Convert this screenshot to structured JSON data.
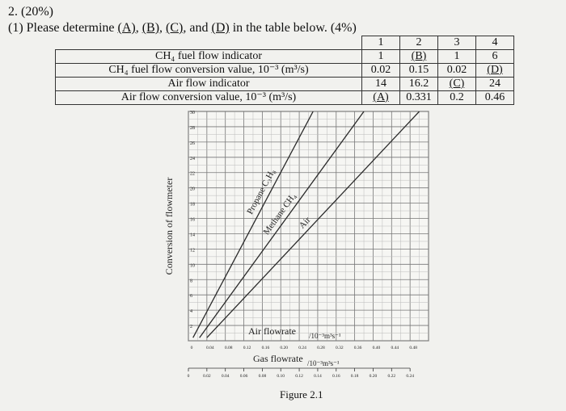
{
  "problem": {
    "heading": "2. (20%)",
    "question_parts": [
      "(1) Please determine ",
      "(A)",
      ", ",
      "(B)",
      ", ",
      "(C)",
      ", and ",
      "(D)",
      " in the table below. (4%)"
    ]
  },
  "table": {
    "columns": [
      "1",
      "2",
      "3",
      "4"
    ],
    "rows": [
      {
        "label": "CH₄ fuel flow indicator",
        "values": [
          "1",
          "(B)",
          "1",
          "6"
        ]
      },
      {
        "label": "CH₄ fuel flow conversion value, 10⁻³ (m³/s)",
        "values": [
          "0.02",
          "0.15",
          "0.02",
          "(D)"
        ]
      },
      {
        "label": "Air flow indicator",
        "values": [
          "14",
          "16.2",
          "(C)",
          "24"
        ]
      },
      {
        "label": "Air flow conversion value, 10⁻³ (m³/s)",
        "values": [
          "(A)",
          "0.331",
          "0.2",
          "0.46"
        ]
      }
    ]
  },
  "chart_data": {
    "type": "line",
    "ylabel": "Conversion of flowmeter",
    "y_ticks": [
      "2",
      "4",
      "6",
      "8",
      "10",
      "12",
      "14",
      "16",
      "18",
      "20",
      "22",
      "24",
      "26",
      "28",
      "30"
    ],
    "ylim": [
      0,
      30
    ],
    "x_axis_air": {
      "label": "Air flowrate",
      "unit": "/10⁻³m³s⁻¹",
      "ticks": [
        "0",
        "0.04",
        "0.08",
        "0.12",
        "0.16",
        "0.20",
        "0.24",
        "0.28",
        "0.32",
        "0.36",
        "0.40",
        "0.44",
        "0.48"
      ]
    },
    "x_axis_gas": {
      "label": "Gas flowrate",
      "unit": "/10⁻³m³s⁻¹",
      "ticks": [
        "0",
        "0.02",
        "0.04",
        "0.06",
        "0.08",
        "0.10",
        "0.12",
        "0.14",
        "0.16",
        "0.18",
        "0.20",
        "0.22",
        "0.24"
      ]
    },
    "series": [
      {
        "name": "Propane C₃H₈",
        "x_gas": [
          0.005,
          0.135
        ],
        "y": [
          0.4,
          30
        ]
      },
      {
        "name": "Methane CH₄",
        "x_gas": [
          0.012,
          0.19
        ],
        "y": [
          0.4,
          30
        ]
      },
      {
        "name": "Air",
        "x_air": [
          0.04,
          0.5
        ],
        "y": [
          0.4,
          30
        ]
      }
    ],
    "grid": true,
    "caption": "Figure 2.1"
  }
}
